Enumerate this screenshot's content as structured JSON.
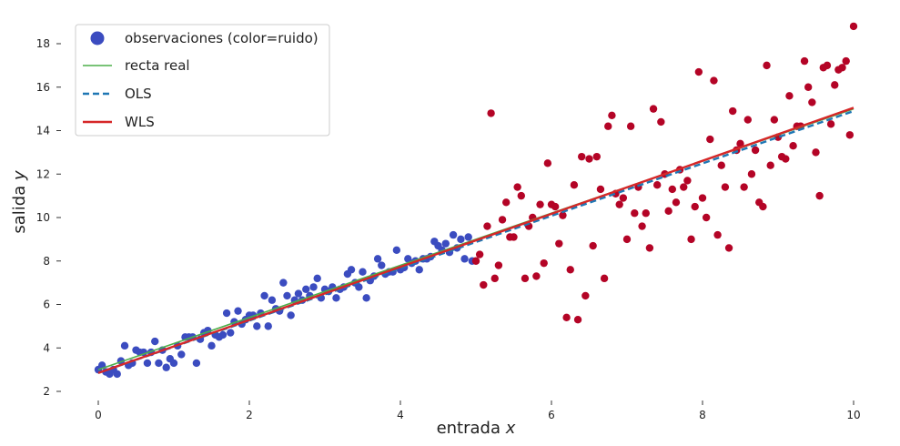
{
  "chart_data": {
    "type": "scatter",
    "title": "",
    "xlabel": "entrada",
    "xlabel_var": "x",
    "ylabel": "salida",
    "ylabel_var": "y",
    "xlim": [
      -0.5,
      10.2
    ],
    "ylim": [
      2,
      18.8
    ],
    "xticks": [
      0,
      2,
      4,
      6,
      8,
      10
    ],
    "yticks": [
      2,
      4,
      6,
      8,
      10,
      12,
      14,
      16,
      18
    ],
    "grid": false,
    "legend_position": "top-left",
    "colors": {
      "low_noise": "#3b4cc0",
      "high_noise": "#b40426",
      "true_line": "#4daf4a",
      "ols": "#1f77b4",
      "wls": "#d62728"
    },
    "legend": [
      {
        "label": "observaciones (color=ruido)",
        "kind": "marker",
        "color": "#3b4cc0"
      },
      {
        "label": "recta real",
        "kind": "line",
        "color": "#4daf4a"
      },
      {
        "label": "OLS",
        "kind": "dashed",
        "color": "#1f77b4"
      },
      {
        "label": "WLS",
        "kind": "line",
        "color": "#d62728"
      }
    ],
    "lines": [
      {
        "name": "recta real",
        "x": [
          0,
          10
        ],
        "y": [
          3.0,
          15.0
        ],
        "color": "#4daf4a",
        "style": "solid"
      },
      {
        "name": "OLS",
        "x": [
          0,
          10
        ],
        "y": [
          2.85,
          14.9
        ],
        "color": "#1f77b4",
        "style": "dashed"
      },
      {
        "name": "WLS",
        "x": [
          0,
          10
        ],
        "y": [
          2.85,
          15.05
        ],
        "color": "#d62728",
        "style": "solid"
      }
    ],
    "points_low_noise": [
      [
        0.0,
        3.0
      ],
      [
        0.05,
        3.2
      ],
      [
        0.1,
        2.9
      ],
      [
        0.15,
        2.8
      ],
      [
        0.2,
        3.0
      ],
      [
        0.25,
        2.8
      ],
      [
        0.3,
        3.4
      ],
      [
        0.35,
        4.1
      ],
      [
        0.4,
        3.2
      ],
      [
        0.45,
        3.3
      ],
      [
        0.5,
        3.9
      ],
      [
        0.55,
        3.8
      ],
      [
        0.6,
        3.8
      ],
      [
        0.65,
        3.3
      ],
      [
        0.7,
        3.8
      ],
      [
        0.75,
        4.3
      ],
      [
        0.8,
        3.3
      ],
      [
        0.85,
        3.9
      ],
      [
        0.9,
        3.1
      ],
      [
        0.95,
        3.5
      ],
      [
        1.0,
        3.3
      ],
      [
        1.05,
        4.1
      ],
      [
        1.1,
        3.7
      ],
      [
        1.15,
        4.5
      ],
      [
        1.2,
        4.5
      ],
      [
        1.25,
        4.5
      ],
      [
        1.3,
        3.3
      ],
      [
        1.35,
        4.4
      ],
      [
        1.4,
        4.7
      ],
      [
        1.45,
        4.8
      ],
      [
        1.5,
        4.1
      ],
      [
        1.55,
        4.6
      ],
      [
        1.6,
        4.5
      ],
      [
        1.65,
        4.6
      ],
      [
        1.7,
        5.6
      ],
      [
        1.75,
        4.7
      ],
      [
        1.8,
        5.2
      ],
      [
        1.85,
        5.7
      ],
      [
        1.9,
        5.1
      ],
      [
        1.95,
        5.3
      ],
      [
        2.0,
        5.5
      ],
      [
        2.05,
        5.5
      ],
      [
        2.1,
        5.0
      ],
      [
        2.15,
        5.6
      ],
      [
        2.2,
        6.4
      ],
      [
        2.25,
        5.0
      ],
      [
        2.3,
        6.2
      ],
      [
        2.35,
        5.8
      ],
      [
        2.4,
        5.7
      ],
      [
        2.45,
        7.0
      ],
      [
        2.5,
        6.4
      ],
      [
        2.55,
        5.5
      ],
      [
        2.6,
        6.2
      ],
      [
        2.65,
        6.5
      ],
      [
        2.7,
        6.2
      ],
      [
        2.75,
        6.7
      ],
      [
        2.8,
        6.4
      ],
      [
        2.85,
        6.8
      ],
      [
        2.9,
        7.2
      ],
      [
        2.95,
        6.3
      ],
      [
        3.0,
        6.7
      ],
      [
        3.05,
        6.6
      ],
      [
        3.1,
        6.8
      ],
      [
        3.15,
        6.3
      ],
      [
        3.2,
        6.7
      ],
      [
        3.25,
        6.8
      ],
      [
        3.3,
        7.4
      ],
      [
        3.35,
        7.6
      ],
      [
        3.4,
        7.0
      ],
      [
        3.45,
        6.8
      ],
      [
        3.5,
        7.5
      ],
      [
        3.55,
        6.3
      ],
      [
        3.6,
        7.1
      ],
      [
        3.65,
        7.3
      ],
      [
        3.7,
        8.1
      ],
      [
        3.75,
        7.8
      ],
      [
        3.8,
        7.4
      ],
      [
        3.85,
        7.5
      ],
      [
        3.9,
        7.5
      ],
      [
        3.95,
        8.5
      ],
      [
        4.0,
        7.6
      ],
      [
        4.05,
        7.7
      ],
      [
        4.1,
        8.1
      ],
      [
        4.15,
        7.9
      ],
      [
        4.2,
        8.0
      ],
      [
        4.25,
        7.6
      ],
      [
        4.3,
        8.1
      ],
      [
        4.35,
        8.1
      ],
      [
        4.4,
        8.2
      ],
      [
        4.45,
        8.9
      ],
      [
        4.5,
        8.7
      ],
      [
        4.55,
        8.5
      ],
      [
        4.6,
        8.8
      ],
      [
        4.65,
        8.4
      ],
      [
        4.7,
        9.2
      ],
      [
        4.75,
        8.6
      ],
      [
        4.8,
        9.0
      ],
      [
        4.85,
        8.1
      ],
      [
        4.9,
        9.1
      ],
      [
        4.95,
        8.0
      ]
    ],
    "points_high_noise": [
      [
        5.0,
        8.0
      ],
      [
        5.05,
        8.3
      ],
      [
        5.1,
        6.9
      ],
      [
        5.15,
        9.6
      ],
      [
        5.2,
        14.8
      ],
      [
        5.25,
        7.2
      ],
      [
        5.3,
        7.8
      ],
      [
        5.35,
        9.9
      ],
      [
        5.4,
        10.7
      ],
      [
        5.45,
        9.1
      ],
      [
        5.5,
        9.1
      ],
      [
        5.55,
        11.4
      ],
      [
        5.6,
        11.0
      ],
      [
        5.65,
        7.2
      ],
      [
        5.7,
        9.6
      ],
      [
        5.75,
        10.0
      ],
      [
        5.8,
        7.3
      ],
      [
        5.85,
        10.6
      ],
      [
        5.9,
        7.9
      ],
      [
        5.95,
        12.5
      ],
      [
        6.0,
        10.6
      ],
      [
        6.05,
        10.5
      ],
      [
        6.1,
        8.8
      ],
      [
        6.15,
        10.1
      ],
      [
        6.2,
        5.4
      ],
      [
        6.25,
        7.6
      ],
      [
        6.3,
        11.5
      ],
      [
        6.35,
        5.3
      ],
      [
        6.4,
        12.8
      ],
      [
        6.45,
        6.4
      ],
      [
        6.5,
        12.7
      ],
      [
        6.55,
        8.7
      ],
      [
        6.6,
        12.8
      ],
      [
        6.65,
        11.3
      ],
      [
        6.7,
        7.2
      ],
      [
        6.75,
        14.2
      ],
      [
        6.8,
        14.7
      ],
      [
        6.85,
        11.1
      ],
      [
        6.9,
        10.6
      ],
      [
        6.95,
        10.9
      ],
      [
        7.0,
        9.0
      ],
      [
        7.05,
        14.2
      ],
      [
        7.1,
        10.2
      ],
      [
        7.15,
        11.4
      ],
      [
        7.2,
        9.6
      ],
      [
        7.25,
        10.2
      ],
      [
        7.3,
        8.6
      ],
      [
        7.35,
        15.0
      ],
      [
        7.4,
        11.5
      ],
      [
        7.45,
        14.4
      ],
      [
        7.5,
        12.0
      ],
      [
        7.55,
        10.3
      ],
      [
        7.6,
        11.3
      ],
      [
        7.65,
        10.7
      ],
      [
        7.7,
        12.2
      ],
      [
        7.75,
        11.4
      ],
      [
        7.8,
        11.7
      ],
      [
        7.85,
        9.0
      ],
      [
        7.9,
        10.5
      ],
      [
        7.95,
        16.7
      ],
      [
        8.0,
        10.9
      ],
      [
        8.05,
        10.0
      ],
      [
        8.1,
        13.6
      ],
      [
        8.15,
        16.3
      ],
      [
        8.2,
        9.2
      ],
      [
        8.25,
        12.4
      ],
      [
        8.3,
        11.4
      ],
      [
        8.35,
        8.6
      ],
      [
        8.4,
        14.9
      ],
      [
        8.45,
        13.1
      ],
      [
        8.5,
        13.4
      ],
      [
        8.55,
        11.4
      ],
      [
        8.6,
        14.5
      ],
      [
        8.65,
        12.0
      ],
      [
        8.7,
        13.1
      ],
      [
        8.75,
        10.7
      ],
      [
        8.8,
        10.5
      ],
      [
        8.85,
        17.0
      ],
      [
        8.9,
        12.4
      ],
      [
        8.95,
        14.5
      ],
      [
        9.0,
        13.7
      ],
      [
        9.05,
        12.8
      ],
      [
        9.1,
        12.7
      ],
      [
        9.15,
        15.6
      ],
      [
        9.2,
        13.3
      ],
      [
        9.25,
        14.2
      ],
      [
        9.3,
        14.2
      ],
      [
        9.35,
        17.2
      ],
      [
        9.4,
        16.0
      ],
      [
        9.45,
        15.3
      ],
      [
        9.5,
        13.0
      ],
      [
        9.55,
        11.0
      ],
      [
        9.6,
        16.9
      ],
      [
        9.65,
        17.0
      ],
      [
        9.7,
        14.3
      ],
      [
        9.75,
        16.1
      ],
      [
        9.8,
        16.8
      ],
      [
        9.85,
        16.9
      ],
      [
        9.9,
        17.2
      ],
      [
        9.95,
        13.8
      ],
      [
        10.0,
        18.8
      ]
    ]
  }
}
